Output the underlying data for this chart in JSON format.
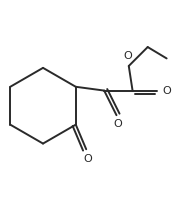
{
  "bg_color": "#ffffff",
  "line_color": "#2a2a2a",
  "line_width": 1.4,
  "figsize": [
    1.92,
    2.19
  ],
  "dpi": 100,
  "xlim": [
    0.0,
    1.0
  ],
  "ylim": [
    0.0,
    1.0
  ]
}
